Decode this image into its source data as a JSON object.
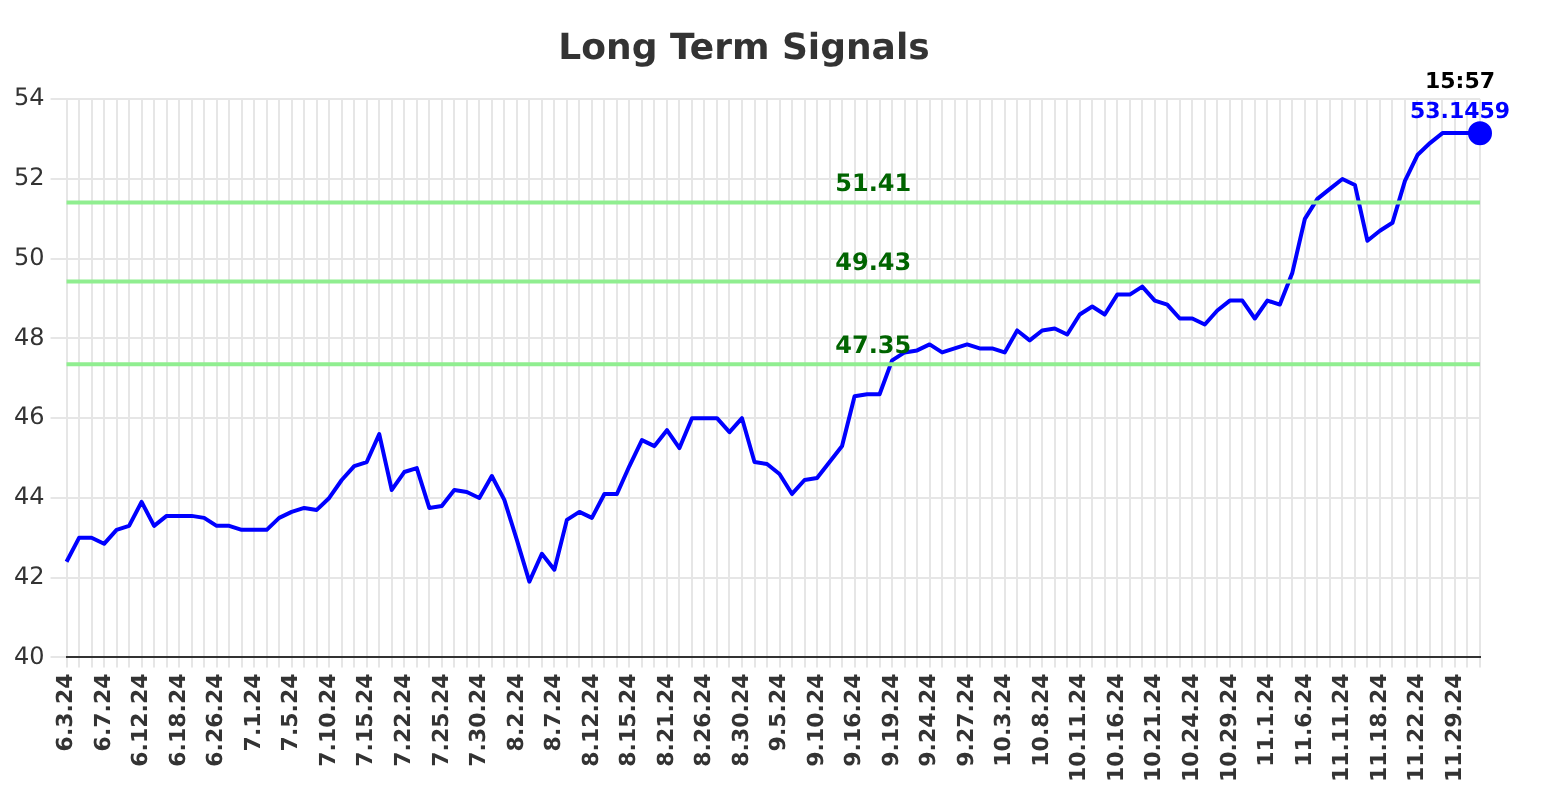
{
  "chart_data": {
    "type": "line",
    "title": "Long Term Signals",
    "categories": [
      "6.3.24",
      null,
      null,
      "6.7.24",
      null,
      null,
      "6.12.24",
      null,
      null,
      "6.18.24",
      null,
      null,
      "6.26.24",
      null,
      null,
      "7.1.24",
      null,
      null,
      "7.5.24",
      null,
      null,
      "7.10.24",
      null,
      null,
      "7.15.24",
      null,
      null,
      "7.22.24",
      null,
      null,
      "7.25.24",
      null,
      null,
      "7.30.24",
      null,
      null,
      "8.2.24",
      null,
      null,
      "8.7.24",
      null,
      null,
      "8.12.24",
      null,
      null,
      "8.15.24",
      null,
      null,
      "8.21.24",
      null,
      null,
      "8.26.24",
      null,
      null,
      "8.30.24",
      null,
      null,
      "9.5.24",
      null,
      null,
      "9.10.24",
      null,
      null,
      "9.16.24",
      null,
      null,
      "9.19.24",
      null,
      null,
      "9.24.24",
      null,
      null,
      "9.27.24",
      null,
      null,
      "10.3.24",
      null,
      null,
      "10.8.24",
      null,
      null,
      "10.11.24",
      null,
      null,
      "10.16.24",
      null,
      null,
      "10.21.24",
      null,
      null,
      "10.24.24",
      null,
      null,
      "10.29.24",
      null,
      null,
      "11.1.24",
      null,
      null,
      "11.6.24",
      null,
      null,
      "11.11.24",
      null,
      null,
      "11.18.24",
      null,
      null,
      "11.22.24",
      null,
      null,
      "11.29.24",
      null,
      null
    ],
    "series": [
      {
        "color": "#0000ff",
        "values": [
          42.4,
          43.0,
          43.0,
          42.85,
          43.2,
          43.3,
          43.9,
          43.3,
          43.55,
          43.55,
          43.55,
          43.5,
          43.3,
          43.3,
          43.2,
          43.2,
          43.2,
          43.5,
          43.65,
          43.75,
          43.7,
          44.0,
          44.45,
          44.8,
          44.9,
          45.6,
          44.2,
          44.65,
          44.75,
          43.75,
          43.8,
          44.2,
          44.15,
          44.0,
          44.55,
          43.95,
          42.95,
          41.9,
          42.6,
          42.2,
          43.45,
          43.65,
          43.5,
          44.1,
          44.1,
          44.8,
          45.45,
          45.3,
          45.7,
          45.25,
          46.0,
          46.0,
          46.0,
          45.65,
          46.0,
          44.9,
          44.85,
          44.6,
          44.1,
          44.45,
          44.5,
          44.9,
          45.3,
          46.55,
          46.6,
          46.6,
          47.45,
          47.65,
          47.7,
          47.85,
          47.65,
          47.75,
          47.85,
          47.75,
          47.75,
          47.65,
          48.2,
          47.95,
          48.2,
          48.25,
          48.1,
          48.6,
          48.8,
          48.6,
          49.1,
          49.1,
          49.3,
          48.95,
          48.85,
          48.5,
          48.5,
          48.35,
          48.7,
          48.95,
          48.95,
          48.5,
          48.95,
          48.85,
          49.65,
          51.0,
          51.5,
          51.75,
          52.0,
          51.85,
          50.45,
          50.7,
          50.9,
          51.95,
          52.6,
          52.9,
          53.15,
          53.15,
          53.15,
          53.1459
        ],
        "value_labels": [
          null,
          null,
          null,
          null,
          null,
          null,
          null,
          null,
          null,
          null,
          null,
          null,
          null,
          null,
          null,
          null,
          null,
          null,
          null,
          null,
          null,
          null,
          null,
          null,
          null,
          null,
          null,
          null,
          null,
          null,
          null,
          null,
          null,
          null,
          null,
          null,
          null,
          null,
          null,
          null,
          null,
          null,
          null,
          null,
          null,
          null,
          null,
          null,
          null,
          null,
          null,
          null,
          null,
          null,
          null,
          null,
          null,
          null,
          null,
          null,
          null,
          null,
          null,
          null,
          null,
          null,
          null,
          null,
          null,
          null,
          null,
          null,
          null,
          null,
          null,
          null,
          null,
          null,
          null,
          null,
          null,
          null,
          null,
          null,
          null,
          null,
          null,
          null,
          null,
          null,
          null,
          null,
          null,
          null,
          null,
          null,
          null,
          null,
          null,
          null,
          null,
          null,
          null,
          null,
          null,
          null,
          null,
          null,
          null,
          null,
          null,
          null,
          null,
          "53.1459"
        ]
      }
    ],
    "ylim": [
      40,
      54
    ],
    "yticks": [
      40,
      42,
      44,
      46,
      48,
      50,
      52,
      54
    ],
    "grid": true,
    "marker": "none",
    "line_style": "solid",
    "ref_lines": [
      {
        "axis": "y",
        "value": 51.41,
        "label": "51.41",
        "color": "#90ee90"
      },
      {
        "axis": "y",
        "value": 49.43,
        "label": "49.43",
        "color": "#90ee90"
      },
      {
        "axis": "y",
        "value": 47.35,
        "label": "47.35",
        "color": "#90ee90"
      }
    ],
    "annotations": [
      "15:57"
    ]
  }
}
